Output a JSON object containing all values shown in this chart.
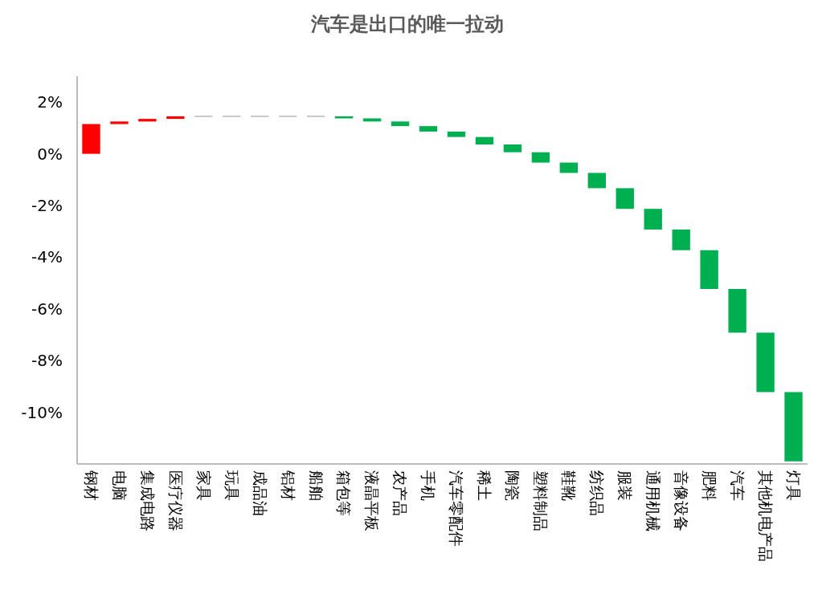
{
  "chart_data": {
    "type": "bar",
    "title": "汽车是出口的唯一拉动",
    "categories": [
      "钢材",
      "电脑",
      "集成电路",
      "医疗仪器",
      "家具",
      "玩具",
      "成品油",
      "铝材",
      "船舶",
      "箱包等",
      "液晶平板",
      "农产品",
      "手机",
      "汽车零配件",
      "稀土",
      "陶瓷",
      "塑料制品",
      "鞋靴",
      "纺织品",
      "服装",
      "通用机械",
      "音像设备",
      "肥料",
      "汽车",
      "其他机电产品",
      "灯具"
    ],
    "values": [
      1.15,
      0.1,
      0.1,
      0.1,
      0,
      0,
      0,
      0,
      0,
      -0.08,
      -0.12,
      -0.18,
      -0.21,
      -0.21,
      -0.29,
      -0.3,
      -0.4,
      -0.4,
      -0.59,
      -0.8,
      -0.8,
      -0.8,
      -1.5,
      -1.69,
      -2.3,
      -2.68
    ],
    "base": [
      0,
      1.15,
      1.25,
      1.35,
      1.45,
      1.45,
      1.45,
      1.45,
      1.45,
      1.45,
      1.37,
      1.25,
      1.07,
      0.86,
      0.65,
      0.36,
      0.06,
      -0.34,
      -0.74,
      -1.33,
      -2.13,
      -2.93,
      -3.73,
      -5.23,
      -6.92,
      -9.22
    ],
    "colors": [
      "#ff0000",
      "#ff0000",
      "#ff0000",
      "#ff0000",
      "#c8c8c8",
      "#c8c8c8",
      "#c8c8c8",
      "#c8c8c8",
      "#c8c8c8",
      "#00b050",
      "#00b050",
      "#00b050",
      "#00b050",
      "#00b050",
      "#00b050",
      "#00b050",
      "#00b050",
      "#00b050",
      "#00b050",
      "#00b050",
      "#00b050",
      "#00b050",
      "#00b050",
      "#00b050",
      "#00b050",
      "#00b050"
    ],
    "ylim": [
      -12,
      3
    ],
    "yticks": [
      {
        "value": 2,
        "label": "2%"
      },
      {
        "value": 0,
        "label": "0%"
      },
      {
        "value": -2,
        "label": "-2%"
      },
      {
        "value": -4,
        "label": "-4%"
      },
      {
        "value": -6,
        "label": "-6%"
      },
      {
        "value": -8,
        "label": "-8%"
      },
      {
        "value": -10,
        "label": "-10%"
      }
    ],
    "grid": false
  }
}
